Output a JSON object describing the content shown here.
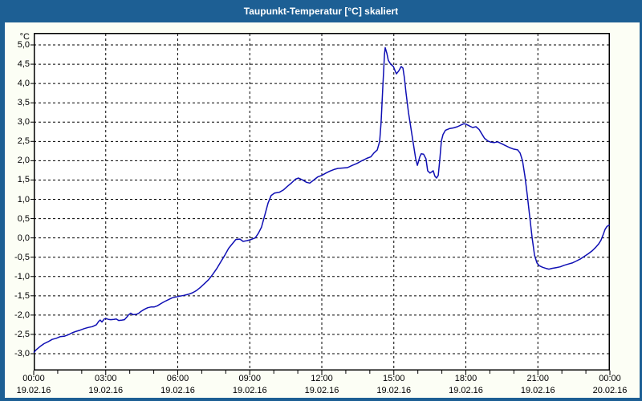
{
  "window": {
    "title": "Taupunkt-Temperatur [°C] skaliert"
  },
  "colors": {
    "titlebar_bg": "#1d5f94",
    "titlebar_text": "#ffffff",
    "window_bg": "#fcfef5",
    "plot_bg": "#ffffff",
    "plot_border": "#000000",
    "grid": "#000000",
    "line": "#0f0fb4",
    "label_text": "#000000"
  },
  "chart_data": {
    "type": "line",
    "title": "Taupunkt-Temperatur [°C] skaliert",
    "ylabel_unit": "°C",
    "ylim": [
      -3.44,
      5.31
    ],
    "xlim_hours": [
      0,
      24
    ],
    "grid": "dashed",
    "legend": "none",
    "y_ticks": [
      {
        "value": 5.0,
        "label": "5,0"
      },
      {
        "value": 4.5,
        "label": "4,5"
      },
      {
        "value": 4.0,
        "label": "4,0"
      },
      {
        "value": 3.5,
        "label": "3,5"
      },
      {
        "value": 3.0,
        "label": "3,0"
      },
      {
        "value": 2.5,
        "label": "2,5"
      },
      {
        "value": 2.0,
        "label": "2,0"
      },
      {
        "value": 1.5,
        "label": "1,5"
      },
      {
        "value": 1.0,
        "label": "1,0"
      },
      {
        "value": 0.5,
        "label": "0,5"
      },
      {
        "value": 0.0,
        "label": "0,0"
      },
      {
        "value": -0.5,
        "label": "-0,5"
      },
      {
        "value": -1.0,
        "label": "-1,0"
      },
      {
        "value": -1.5,
        "label": "-1,5"
      },
      {
        "value": -2.0,
        "label": "-2,0"
      },
      {
        "value": -2.5,
        "label": "-2,5"
      },
      {
        "value": -3.0,
        "label": "-3,0"
      }
    ],
    "x_ticks": [
      {
        "hour": 0,
        "time": "00:00",
        "date": "19.02.16"
      },
      {
        "hour": 3,
        "time": "03:00",
        "date": "19.02.16"
      },
      {
        "hour": 6,
        "time": "06:00",
        "date": "19.02.16"
      },
      {
        "hour": 9,
        "time": "09:00",
        "date": "19.02.16"
      },
      {
        "hour": 12,
        "time": "12:00",
        "date": "19.02.16"
      },
      {
        "hour": 15,
        "time": "15:00",
        "date": "19.02.16"
      },
      {
        "hour": 18,
        "time": "18:00",
        "date": "19.02.16"
      },
      {
        "hour": 21,
        "time": "21:00",
        "date": "19.02.16"
      },
      {
        "hour": 24,
        "time": "00:00",
        "date": "20.02.16"
      }
    ],
    "x_gridline_hours": [
      3,
      6,
      9,
      12,
      15,
      18,
      21
    ],
    "minor_tick_every_hours": 1,
    "series": [
      {
        "name": "Taupunkt-Temperatur skaliert",
        "color": "#0f0fb4",
        "points": [
          [
            0,
            -2.97
          ],
          [
            0.1,
            -2.9
          ],
          [
            0.27,
            -2.81
          ],
          [
            0.43,
            -2.74
          ],
          [
            0.6,
            -2.69
          ],
          [
            0.77,
            -2.63
          ],
          [
            0.94,
            -2.6
          ],
          [
            1.1,
            -2.56
          ],
          [
            1.27,
            -2.55
          ],
          [
            1.44,
            -2.51
          ],
          [
            1.6,
            -2.46
          ],
          [
            1.77,
            -2.42
          ],
          [
            1.94,
            -2.39
          ],
          [
            2.11,
            -2.35
          ],
          [
            2.27,
            -2.32
          ],
          [
            2.44,
            -2.3
          ],
          [
            2.61,
            -2.25
          ],
          [
            2.71,
            -2.16
          ],
          [
            2.77,
            -2.13
          ],
          [
            2.84,
            -2.18
          ],
          [
            2.94,
            -2.1
          ],
          [
            3.01,
            -2.09
          ],
          [
            3.11,
            -2.11
          ],
          [
            3.21,
            -2.12
          ],
          [
            3.34,
            -2.11
          ],
          [
            3.44,
            -2.1
          ],
          [
            3.54,
            -2.14
          ],
          [
            3.68,
            -2.13
          ],
          [
            3.78,
            -2.12
          ],
          [
            3.88,
            -2.05
          ],
          [
            3.94,
            -2.0
          ],
          [
            4.04,
            -1.95
          ],
          [
            4.14,
            -1.99
          ],
          [
            4.28,
            -1.98
          ],
          [
            4.38,
            -1.95
          ],
          [
            4.48,
            -1.9
          ],
          [
            4.61,
            -1.85
          ],
          [
            4.75,
            -1.81
          ],
          [
            4.88,
            -1.79
          ],
          [
            5.01,
            -1.79
          ],
          [
            5.15,
            -1.76
          ],
          [
            5.28,
            -1.71
          ],
          [
            5.45,
            -1.65
          ],
          [
            5.62,
            -1.6
          ],
          [
            5.78,
            -1.55
          ],
          [
            5.92,
            -1.53
          ],
          [
            6.08,
            -1.51
          ],
          [
            6.25,
            -1.49
          ],
          [
            6.45,
            -1.46
          ],
          [
            6.62,
            -1.42
          ],
          [
            6.79,
            -1.36
          ],
          [
            6.95,
            -1.28
          ],
          [
            7.12,
            -1.18
          ],
          [
            7.29,
            -1.08
          ],
          [
            7.45,
            -0.95
          ],
          [
            7.62,
            -0.8
          ],
          [
            7.79,
            -0.62
          ],
          [
            7.96,
            -0.45
          ],
          [
            8.12,
            -0.27
          ],
          [
            8.29,
            -0.14
          ],
          [
            8.42,
            -0.04
          ],
          [
            8.59,
            -0.03
          ],
          [
            8.72,
            -0.09
          ],
          [
            8.89,
            -0.07
          ],
          [
            9.06,
            -0.04
          ],
          [
            9.23,
            0.0
          ],
          [
            9.36,
            0.12
          ],
          [
            9.49,
            0.28
          ],
          [
            9.63,
            0.6
          ],
          [
            9.76,
            0.9
          ],
          [
            9.89,
            1.1
          ],
          [
            10.03,
            1.16
          ],
          [
            10.23,
            1.18
          ],
          [
            10.4,
            1.24
          ],
          [
            10.56,
            1.33
          ],
          [
            10.73,
            1.42
          ],
          [
            10.9,
            1.52
          ],
          [
            11.03,
            1.55
          ],
          [
            11.2,
            1.5
          ],
          [
            11.36,
            1.44
          ],
          [
            11.5,
            1.42
          ],
          [
            11.67,
            1.5
          ],
          [
            11.83,
            1.58
          ],
          [
            12.0,
            1.62
          ],
          [
            12.17,
            1.68
          ],
          [
            12.33,
            1.73
          ],
          [
            12.5,
            1.77
          ],
          [
            12.67,
            1.8
          ],
          [
            12.87,
            1.81
          ],
          [
            13.07,
            1.82
          ],
          [
            13.27,
            1.88
          ],
          [
            13.47,
            1.93
          ],
          [
            13.67,
            2.0
          ],
          [
            13.87,
            2.06
          ],
          [
            14.04,
            2.1
          ],
          [
            14.17,
            2.2
          ],
          [
            14.31,
            2.28
          ],
          [
            14.41,
            2.5
          ],
          [
            14.47,
            3.0
          ],
          [
            14.54,
            3.9
          ],
          [
            14.61,
            4.75
          ],
          [
            14.64,
            4.93
          ],
          [
            14.71,
            4.78
          ],
          [
            14.77,
            4.6
          ],
          [
            14.87,
            4.5
          ],
          [
            14.98,
            4.44
          ],
          [
            15.04,
            4.35
          ],
          [
            15.11,
            4.25
          ],
          [
            15.21,
            4.33
          ],
          [
            15.31,
            4.44
          ],
          [
            15.38,
            4.4
          ],
          [
            15.44,
            4.15
          ],
          [
            15.51,
            3.75
          ],
          [
            15.61,
            3.25
          ],
          [
            15.71,
            2.85
          ],
          [
            15.81,
            2.45
          ],
          [
            15.91,
            2.05
          ],
          [
            15.98,
            1.88
          ],
          [
            16.08,
            2.1
          ],
          [
            16.14,
            2.18
          ],
          [
            16.24,
            2.17
          ],
          [
            16.34,
            2.05
          ],
          [
            16.41,
            1.74
          ],
          [
            16.51,
            1.68
          ],
          [
            16.64,
            1.74
          ],
          [
            16.71,
            1.6
          ],
          [
            16.78,
            1.55
          ],
          [
            16.85,
            1.62
          ],
          [
            16.91,
            2.0
          ],
          [
            16.98,
            2.51
          ],
          [
            17.05,
            2.68
          ],
          [
            17.15,
            2.79
          ],
          [
            17.31,
            2.83
          ],
          [
            17.48,
            2.85
          ],
          [
            17.65,
            2.88
          ],
          [
            17.82,
            2.93
          ],
          [
            17.92,
            2.96
          ],
          [
            18.02,
            2.94
          ],
          [
            18.15,
            2.9
          ],
          [
            18.28,
            2.86
          ],
          [
            18.42,
            2.88
          ],
          [
            18.55,
            2.81
          ],
          [
            18.65,
            2.71
          ],
          [
            18.78,
            2.58
          ],
          [
            18.92,
            2.51
          ],
          [
            19.05,
            2.48
          ],
          [
            19.18,
            2.47
          ],
          [
            19.32,
            2.49
          ],
          [
            19.49,
            2.44
          ],
          [
            19.65,
            2.39
          ],
          [
            19.82,
            2.34
          ],
          [
            19.99,
            2.3
          ],
          [
            20.16,
            2.28
          ],
          [
            20.26,
            2.2
          ],
          [
            20.36,
            2.0
          ],
          [
            20.46,
            1.6
          ],
          [
            20.56,
            1.1
          ],
          [
            20.66,
            0.55
          ],
          [
            20.76,
            0.0
          ],
          [
            20.86,
            -0.45
          ],
          [
            20.96,
            -0.65
          ],
          [
            21.06,
            -0.72
          ],
          [
            21.19,
            -0.76
          ],
          [
            21.33,
            -0.79
          ],
          [
            21.46,
            -0.81
          ],
          [
            21.59,
            -0.79
          ],
          [
            21.76,
            -0.77
          ],
          [
            21.93,
            -0.75
          ],
          [
            22.09,
            -0.71
          ],
          [
            22.26,
            -0.68
          ],
          [
            22.43,
            -0.65
          ],
          [
            22.6,
            -0.6
          ],
          [
            22.76,
            -0.55
          ],
          [
            22.93,
            -0.48
          ],
          [
            23.1,
            -0.41
          ],
          [
            23.27,
            -0.33
          ],
          [
            23.4,
            -0.25
          ],
          [
            23.53,
            -0.16
          ],
          [
            23.63,
            -0.06
          ],
          [
            23.73,
            0.1
          ],
          [
            23.8,
            0.22
          ],
          [
            23.87,
            0.29
          ],
          [
            23.93,
            0.32
          ],
          [
            24.0,
            0.33
          ]
        ]
      }
    ]
  }
}
